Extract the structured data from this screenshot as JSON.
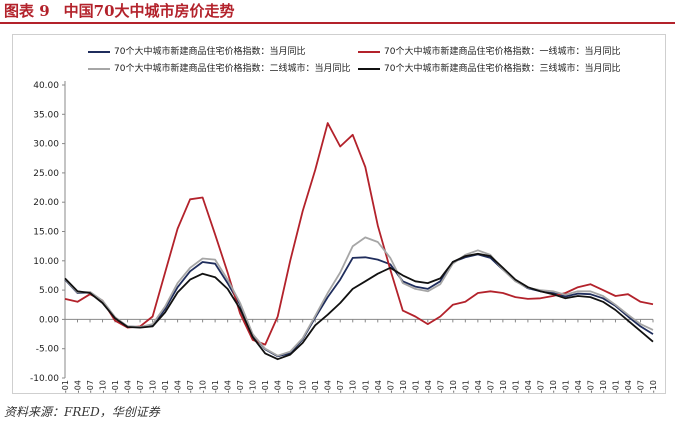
{
  "figure": {
    "label": "图表 9",
    "title": "中国70大中城市房价走势",
    "source": "资料来源：FRED，华创证券"
  },
  "chart_data": {
    "type": "line",
    "ylim": [
      -10,
      40
    ],
    "yticks": [
      "-10.00",
      "-5.00",
      "0.00",
      "5.00",
      "10.00",
      "15.00",
      "20.00",
      "25.00",
      "30.00",
      "35.00",
      "40.00"
    ],
    "xticks": [
      "2011-01",
      "2011-04",
      "2011-07",
      "2011-10",
      "2012-01",
      "2012-04",
      "2012-07",
      "2012-10",
      "2013-01",
      "2013-04",
      "2013-07",
      "2013-10",
      "2014-01",
      "2014-04",
      "2014-07",
      "2014-10",
      "2015-01",
      "2015-04",
      "2015-07",
      "2015-10",
      "2016-01",
      "2016-04",
      "2016-07",
      "2016-10",
      "2017-01",
      "2017-04",
      "2017-07",
      "2017-10",
      "2018-01",
      "2018-04",
      "2018-07",
      "2018-10",
      "2019-01",
      "2019-04",
      "2019-07",
      "2019-10",
      "2020-01",
      "2020-04",
      "2020-07",
      "2020-10",
      "2021-01",
      "2021-04",
      "2021-07",
      "2021-10",
      "2022-01",
      "2022-04",
      "2022-07",
      "2022-10"
    ],
    "legend_position": "top",
    "grid": false,
    "series": [
      {
        "name": "70个大中城市新建商品住宅价格指数：当月同比",
        "color": "#1f2d5c",
        "x": [
          "2011-01",
          "2011-04",
          "2011-07",
          "2011-10",
          "2012-01",
          "2012-04",
          "2012-07",
          "2012-10",
          "2013-01",
          "2013-04",
          "2013-07",
          "2013-10",
          "2014-01",
          "2014-04",
          "2014-07",
          "2014-10",
          "2015-01",
          "2015-04",
          "2015-07",
          "2015-10",
          "2016-01",
          "2016-04",
          "2016-07",
          "2016-10",
          "2017-01",
          "2017-04",
          "2017-07",
          "2017-10",
          "2018-01",
          "2018-04",
          "2018-07",
          "2018-10",
          "2019-01",
          "2019-04",
          "2019-07",
          "2019-10",
          "2020-01",
          "2020-04",
          "2020-07",
          "2020-10",
          "2021-01",
          "2021-04",
          "2021-07",
          "2021-10",
          "2022-01",
          "2022-04",
          "2022-07",
          "2022-10"
        ],
        "values": [
          6.8,
          4.5,
          4.6,
          3.0,
          0.3,
          -1.2,
          -1.3,
          -1.0,
          1.8,
          5.5,
          8.2,
          9.8,
          9.5,
          6.2,
          2.5,
          -2.6,
          -5.1,
          -6.3,
          -5.8,
          -3.4,
          0.3,
          3.8,
          6.8,
          10.5,
          10.6,
          10.2,
          9.4,
          6.5,
          5.6,
          5.2,
          6.5,
          9.8,
          10.6,
          11.1,
          10.5,
          8.5,
          6.6,
          5.3,
          4.8,
          4.5,
          3.9,
          4.4,
          4.3,
          3.6,
          2.3,
          0.5,
          -1.2,
          -2.5
        ]
      },
      {
        "name": "70个大中城市新建商品住宅价格指数：一线城市：当月同比",
        "color": "#b3222b",
        "x": [
          "2011-01",
          "2011-04",
          "2011-07",
          "2011-10",
          "2012-01",
          "2012-04",
          "2012-07",
          "2012-10",
          "2013-01",
          "2013-04",
          "2013-07",
          "2013-10",
          "2014-01",
          "2014-04",
          "2014-07",
          "2014-10",
          "2015-01",
          "2015-04",
          "2015-07",
          "2015-10",
          "2016-01",
          "2016-04",
          "2016-07",
          "2016-10",
          "2017-01",
          "2017-04",
          "2017-07",
          "2017-10",
          "2018-01",
          "2018-04",
          "2018-07",
          "2018-10",
          "2019-01",
          "2019-04",
          "2019-07",
          "2019-10",
          "2020-01",
          "2020-04",
          "2020-07",
          "2020-10",
          "2021-01",
          "2021-04",
          "2021-07",
          "2021-10",
          "2022-01",
          "2022-04",
          "2022-07",
          "2022-10"
        ],
        "values": [
          3.5,
          3.0,
          4.3,
          3.2,
          -0.2,
          -1.4,
          -1.2,
          0.5,
          8.0,
          15.5,
          20.5,
          20.8,
          14.5,
          8.0,
          1.0,
          -3.5,
          -4.3,
          0.5,
          10.0,
          18.5,
          25.5,
          33.5,
          29.5,
          31.5,
          26.0,
          16.0,
          8.5,
          1.5,
          0.5,
          -0.8,
          0.5,
          2.5,
          3.0,
          4.5,
          4.8,
          4.5,
          3.8,
          3.5,
          3.6,
          4.0,
          4.5,
          5.5,
          6.0,
          5.0,
          4.0,
          4.3,
          3.0,
          2.6
        ]
      },
      {
        "name": "70个大中城市新建商品住宅价格指数：二线城市：当月同比",
        "color": "#a6a6a6",
        "x": [
          "2011-01",
          "2011-04",
          "2011-07",
          "2011-10",
          "2012-01",
          "2012-04",
          "2012-07",
          "2012-10",
          "2013-01",
          "2013-04",
          "2013-07",
          "2013-10",
          "2014-01",
          "2014-04",
          "2014-07",
          "2014-10",
          "2015-01",
          "2015-04",
          "2015-07",
          "2015-10",
          "2016-01",
          "2016-04",
          "2016-07",
          "2016-10",
          "2017-01",
          "2017-04",
          "2017-07",
          "2017-10",
          "2018-01",
          "2018-04",
          "2018-07",
          "2018-10",
          "2019-01",
          "2019-04",
          "2019-07",
          "2019-10",
          "2020-01",
          "2020-04",
          "2020-07",
          "2020-10",
          "2021-01",
          "2021-04",
          "2021-07",
          "2021-10",
          "2022-01",
          "2022-04",
          "2022-07",
          "2022-10"
        ],
        "values": [
          6.9,
          4.6,
          4.7,
          3.2,
          0.4,
          -1.2,
          -1.3,
          -0.8,
          2.2,
          6.2,
          8.8,
          10.4,
          10.2,
          6.8,
          2.8,
          -2.5,
          -5.0,
          -6.2,
          -5.5,
          -3.2,
          0.6,
          4.5,
          8.0,
          12.5,
          14.0,
          13.2,
          10.5,
          6.2,
          5.2,
          4.8,
          6.0,
          9.5,
          11.0,
          11.8,
          11.0,
          8.5,
          6.5,
          5.4,
          5.0,
          4.8,
          4.2,
          4.8,
          4.8,
          4.0,
          2.5,
          0.8,
          -0.8,
          -1.8
        ]
      },
      {
        "name": "70个大中城市新建商品住宅价格指数：三线城市：当月同比",
        "color": "#111111",
        "x": [
          "2011-01",
          "2011-04",
          "2011-07",
          "2011-10",
          "2012-01",
          "2012-04",
          "2012-07",
          "2012-10",
          "2013-01",
          "2013-04",
          "2013-07",
          "2013-10",
          "2014-01",
          "2014-04",
          "2014-07",
          "2014-10",
          "2015-01",
          "2015-04",
          "2015-07",
          "2015-10",
          "2016-01",
          "2016-04",
          "2016-07",
          "2016-10",
          "2017-01",
          "2017-04",
          "2017-07",
          "2017-10",
          "2018-01",
          "2018-04",
          "2018-07",
          "2018-10",
          "2019-01",
          "2019-04",
          "2019-07",
          "2019-10",
          "2020-01",
          "2020-04",
          "2020-07",
          "2020-10",
          "2021-01",
          "2021-04",
          "2021-07",
          "2021-10",
          "2022-01",
          "2022-04",
          "2022-07",
          "2022-10"
        ],
        "values": [
          7.0,
          4.8,
          4.5,
          2.8,
          0.2,
          -1.3,
          -1.4,
          -1.2,
          1.2,
          4.6,
          6.8,
          7.8,
          7.2,
          5.2,
          1.8,
          -3.0,
          -5.8,
          -6.8,
          -6.0,
          -4.0,
          -1.0,
          0.8,
          2.8,
          5.2,
          6.5,
          7.8,
          8.8,
          7.5,
          6.5,
          6.2,
          7.0,
          9.8,
          10.8,
          11.2,
          10.8,
          8.8,
          6.8,
          5.5,
          4.8,
          4.3,
          3.6,
          4.0,
          3.8,
          3.0,
          1.6,
          -0.2,
          -2.0,
          -3.8
        ]
      }
    ]
  }
}
